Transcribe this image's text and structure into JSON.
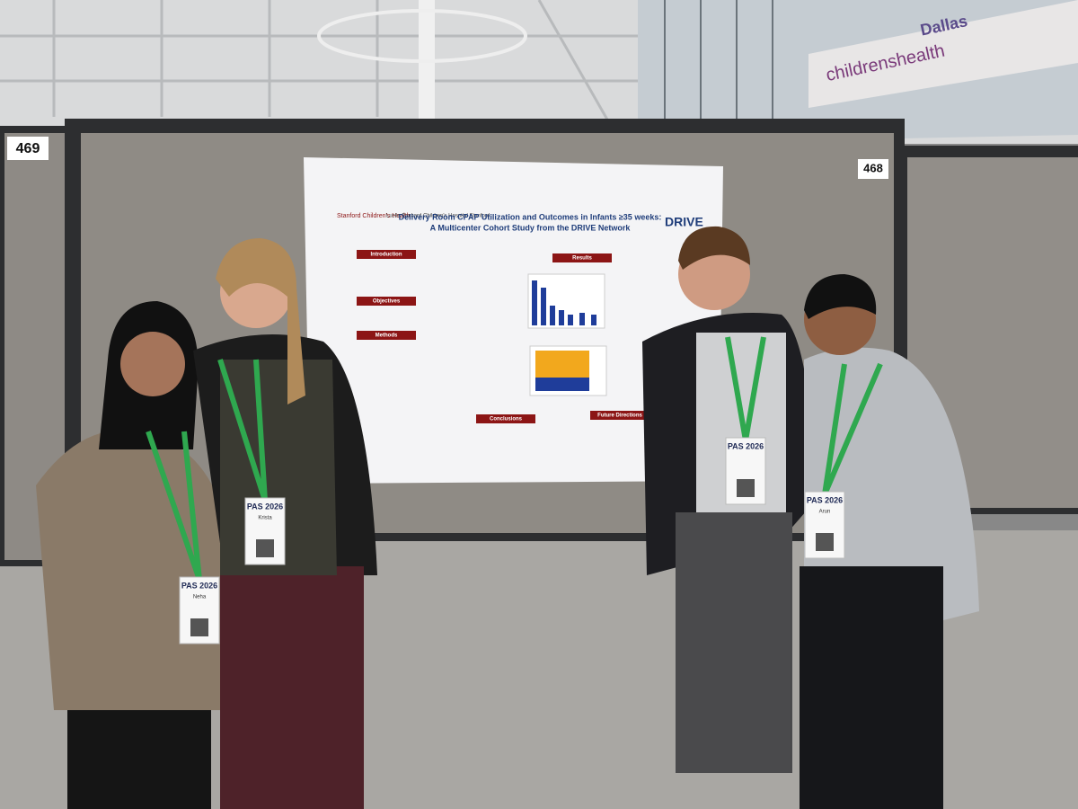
{
  "signage": {
    "banner_city": "Dallas",
    "banner_brand": "childrenshealth"
  },
  "booths": {
    "left_number": "469",
    "right_number": "468"
  },
  "poster": {
    "logo_left": "Stanford Children's Health",
    "logo_middle": "Lucile Packard Children's Hospital Stanford",
    "logo_right": "DRIVE",
    "title_line1": "Delivery Room CPAP Utilization and Outcomes in Infants ≥35 weeks:",
    "title_line2": "A Multicenter Cohort Study from the DRIVE Network",
    "sections": [
      "Introduction",
      "Objectives",
      "Methods",
      "Results",
      "Conclusions",
      "Future Directions"
    ]
  },
  "badges": [
    {
      "event": "PAS 2026",
      "name": "Neha"
    },
    {
      "event": "PAS 2026",
      "name": "Krista"
    },
    {
      "event": "PAS 2026",
      "name": ""
    },
    {
      "event": "PAS 2026",
      "name": "Arun"
    }
  ]
}
